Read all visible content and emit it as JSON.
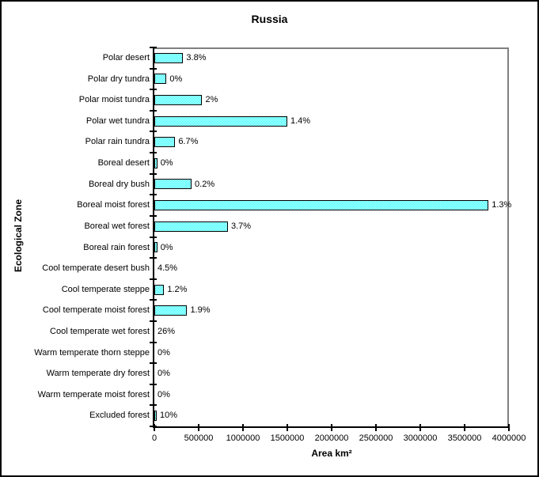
{
  "chart_data": {
    "type": "bar",
    "orientation": "horizontal",
    "title": "Russia",
    "xlabel": "Area km²",
    "ylabel": "Ecological Zone",
    "xlim": [
      0,
      4000000
    ],
    "xticks": [
      0,
      500000,
      1000000,
      1500000,
      2000000,
      2500000,
      3000000,
      3500000,
      4000000
    ],
    "xtick_labels": [
      "0",
      "500000",
      "1000000",
      "1500000",
      "2000000",
      "2500000",
      "3000000",
      "3500000",
      "4000000"
    ],
    "grid": false,
    "bar_color": "#00FFFF",
    "bar_pattern": "cyan-white-checker-dither",
    "plot_border_color": "#808080",
    "categories": [
      "Polar desert",
      "Polar dry tundra",
      "Polar moist tundra",
      "Polar wet tundra",
      "Polar rain tundra",
      "Boreal desert",
      "Boreal dry bush",
      "Boreal moist forest",
      "Boreal wet forest",
      "Boreal rain forest",
      "Cool temperate desert bush",
      "Cool temperate steppe",
      "Cool temperate moist forest",
      "Cool temperate wet forest",
      "Warm temperate thorn steppe",
      "Warm temperate dry forest",
      "Warm temperate moist forest",
      "Excluded forest"
    ],
    "values": [
      325000,
      137000,
      540000,
      1500000,
      235000,
      33000,
      420000,
      3770000,
      830000,
      33000,
      0,
      110000,
      370000,
      0,
      0,
      0,
      0,
      27000
    ],
    "bar_labels": [
      "3.8%",
      "0%",
      "2%",
      "1.4%",
      "6.7%",
      "0%",
      "0.2%",
      "1.3%",
      "3.7%",
      "0%",
      "4.5%",
      "1.2%",
      "1.9%",
      "26%",
      "0%",
      "0%",
      "0%",
      "10%"
    ]
  }
}
